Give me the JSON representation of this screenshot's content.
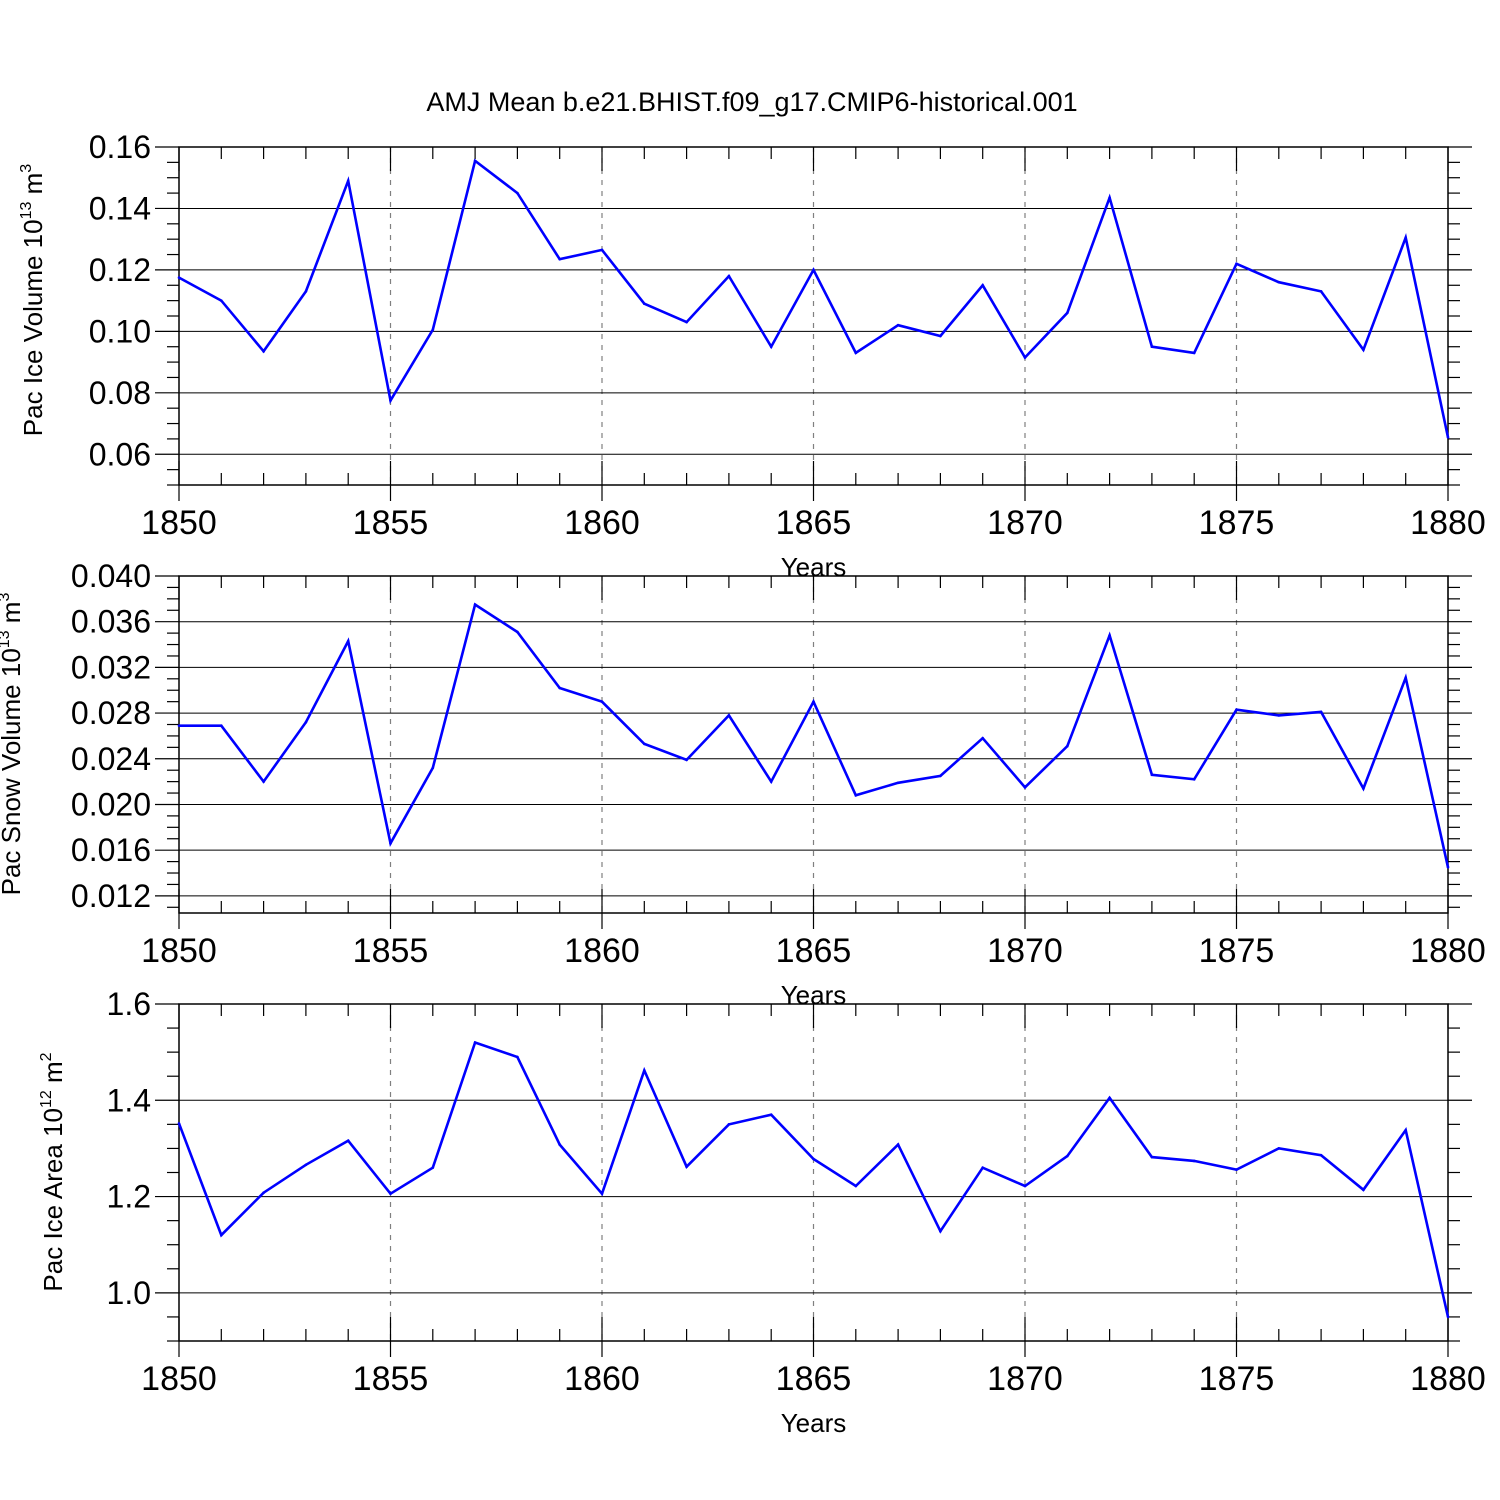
{
  "chart_data": {
    "title": "AMJ Mean b.e21.BHIST.f09_g17.CMIP6-historical.001",
    "line_color": "#0000ff",
    "panels": [
      {
        "type": "line",
        "xlabel": "Years",
        "ylabel": {
          "base": "Pac Ice Volume 10",
          "exp": "13",
          "unit": " m",
          "unit_exp": "3"
        },
        "xlim": [
          1850,
          1880
        ],
        "ylim": [
          0.05,
          0.16
        ],
        "yticks": [
          0.06,
          0.08,
          0.1,
          0.12,
          0.14,
          0.16
        ],
        "ytick_labels": [
          "0.06",
          "0.08",
          "0.10",
          "0.12",
          "0.14",
          "0.16"
        ],
        "yminor_step": 0.005,
        "xticks": [
          1850,
          1855,
          1860,
          1865,
          1870,
          1875,
          1880
        ],
        "xtick_labels": [
          "1850",
          "1855",
          "1860",
          "1865",
          "1870",
          "1875",
          "1880"
        ],
        "x": [
          1850,
          1851,
          1852,
          1853,
          1854,
          1855,
          1856,
          1857,
          1858,
          1859,
          1860,
          1861,
          1862,
          1863,
          1864,
          1865,
          1866,
          1867,
          1868,
          1869,
          1870,
          1871,
          1872,
          1873,
          1874,
          1875,
          1876,
          1877,
          1878,
          1879,
          1880
        ],
        "values": [
          0.1175,
          0.11,
          0.0935,
          0.113,
          0.149,
          0.0775,
          0.1005,
          0.1555,
          0.145,
          0.1235,
          0.1265,
          0.109,
          0.103,
          0.118,
          0.095,
          0.12,
          0.093,
          0.102,
          0.0985,
          0.115,
          0.0915,
          0.106,
          0.1435,
          0.095,
          0.093,
          0.122,
          0.116,
          0.113,
          0.094,
          0.1305,
          0.0655
        ]
      },
      {
        "type": "line",
        "xlabel": "Years",
        "ylabel": {
          "base": "Pac Snow Volume 10",
          "exp": "13",
          "unit": " m",
          "unit_exp": "3"
        },
        "xlim": [
          1850,
          1880
        ],
        "ylim": [
          0.0105,
          0.04
        ],
        "yticks": [
          0.012,
          0.016,
          0.02,
          0.024,
          0.028,
          0.032,
          0.036,
          0.04
        ],
        "ytick_labels": [
          "0.012",
          "0.016",
          "0.020",
          "0.024",
          "0.028",
          "0.032",
          "0.036",
          "0.040"
        ],
        "yminor_step": 0.001,
        "xticks": [
          1850,
          1855,
          1860,
          1865,
          1870,
          1875,
          1880
        ],
        "xtick_labels": [
          "1850",
          "1855",
          "1860",
          "1865",
          "1870",
          "1875",
          "1880"
        ],
        "x": [
          1850,
          1851,
          1852,
          1853,
          1854,
          1855,
          1856,
          1857,
          1858,
          1859,
          1860,
          1861,
          1862,
          1863,
          1864,
          1865,
          1866,
          1867,
          1868,
          1869,
          1870,
          1871,
          1872,
          1873,
          1874,
          1875,
          1876,
          1877,
          1878,
          1879,
          1880
        ],
        "values": [
          0.0269,
          0.0269,
          0.022,
          0.0272,
          0.0343,
          0.0166,
          0.0232,
          0.0375,
          0.0351,
          0.0302,
          0.029,
          0.0253,
          0.0239,
          0.0278,
          0.022,
          0.029,
          0.0208,
          0.0219,
          0.0225,
          0.0258,
          0.0215,
          0.0251,
          0.0348,
          0.0226,
          0.0222,
          0.0283,
          0.0278,
          0.0281,
          0.0214,
          0.0311,
          0.0145
        ]
      },
      {
        "type": "line",
        "xlabel": "Years",
        "ylabel": {
          "base": "Pac Ice Area 10",
          "exp": "12",
          "unit": " m",
          "unit_exp": "2"
        },
        "xlim": [
          1850,
          1880
        ],
        "ylim": [
          0.9,
          1.6
        ],
        "yticks": [
          1.0,
          1.2,
          1.4,
          1.6
        ],
        "ytick_labels": [
          "1.0",
          "1.2",
          "1.4",
          "1.6"
        ],
        "yminor_step": 0.05,
        "xticks": [
          1850,
          1855,
          1860,
          1865,
          1870,
          1875,
          1880
        ],
        "xtick_labels": [
          "1850",
          "1855",
          "1860",
          "1865",
          "1870",
          "1875",
          "1880"
        ],
        "x": [
          1850,
          1851,
          1852,
          1853,
          1854,
          1855,
          1856,
          1857,
          1858,
          1859,
          1860,
          1861,
          1862,
          1863,
          1864,
          1865,
          1866,
          1867,
          1868,
          1869,
          1870,
          1871,
          1872,
          1873,
          1874,
          1875,
          1876,
          1877,
          1878,
          1879,
          1880
        ],
        "values": [
          1.352,
          1.12,
          1.208,
          1.266,
          1.316,
          1.206,
          1.26,
          1.52,
          1.49,
          1.308,
          1.206,
          1.462,
          1.262,
          1.35,
          1.37,
          1.278,
          1.222,
          1.308,
          1.128,
          1.26,
          1.222,
          1.284,
          1.405,
          1.282,
          1.274,
          1.256,
          1.3,
          1.286,
          1.214,
          1.338,
          0.95
        ]
      }
    ]
  }
}
